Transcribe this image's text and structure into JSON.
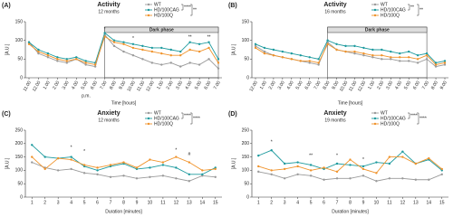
{
  "chart_data": [
    {
      "type": "line",
      "panel": "(A)",
      "title": "Activity",
      "subtitle": "12 months",
      "xlabel": "Time [hours]",
      "ylabel": "[A.U.]",
      "x_note": "p.m.",
      "categories": [
        "11.00",
        "12.00",
        "1.00",
        "2.00",
        "3.00",
        "4.00",
        "5.00",
        "6.00",
        "7.00",
        "8.00",
        "9.00",
        "10.00",
        "11.00",
        "12.00",
        "1.00",
        "2.00",
        "3.00",
        "4.00",
        "5.00",
        "6.00",
        "7.00"
      ],
      "ylim": [
        0,
        150
      ],
      "yticks": [
        0,
        50,
        100,
        150
      ],
      "series": [
        {
          "name": "WT",
          "color": "#9a9a9a",
          "values": [
            95,
            65,
            55,
            45,
            40,
            50,
            35,
            30,
            115,
            85,
            70,
            60,
            50,
            40,
            35,
            40,
            30,
            40,
            35,
            50,
            25
          ]
        },
        {
          "name": "HD/100CAG",
          "color": "#1d9a9e",
          "values": [
            95,
            75,
            65,
            55,
            50,
            55,
            45,
            40,
            120,
            100,
            95,
            90,
            85,
            80,
            80,
            75,
            70,
            95,
            90,
            95,
            50
          ]
        },
        {
          "name": "HD/100Q",
          "color": "#f0932b",
          "values": [
            90,
            70,
            60,
            50,
            45,
            50,
            40,
            35,
            110,
            95,
            90,
            80,
            75,
            70,
            65,
            60,
            60,
            75,
            70,
            80,
            40
          ]
        }
      ],
      "legend_notes": [
        "****",
        "**"
      ],
      "shaded": {
        "label": "Dark phase",
        "from": 8,
        "to": 20
      },
      "annotations": [
        {
          "index": 8,
          "y": 130,
          "label": "*"
        },
        {
          "index": 11,
          "y": 105,
          "label": "*"
        },
        {
          "index": 17,
          "y": 108,
          "label": "**"
        },
        {
          "index": 19,
          "y": 108,
          "label": "**"
        }
      ]
    },
    {
      "type": "line",
      "panel": "(B)",
      "title": "Activity",
      "subtitle": "16 months",
      "xlabel": "Time [hours]",
      "ylabel": "[A.U.]",
      "categories": [
        "12.00",
        "1.00",
        "2.00",
        "3.00",
        "4.00",
        "5.00",
        "6.00",
        "7.00",
        "8.00",
        "9.00",
        "10.00",
        "11.00",
        "12.00",
        "1.00",
        "2.00",
        "3.00",
        "4.00",
        "5.00",
        "6.00",
        "7.00",
        "8.00",
        "9.00"
      ],
      "ylim": [
        0,
        150
      ],
      "yticks": [
        0,
        50,
        100,
        150
      ],
      "series": [
        {
          "name": "WT",
          "color": "#9a9a9a",
          "values": [
            85,
            70,
            60,
            55,
            50,
            45,
            40,
            35,
            95,
            75,
            70,
            65,
            60,
            55,
            50,
            50,
            45,
            45,
            40,
            50,
            30,
            35
          ]
        },
        {
          "name": "HD/100CAG",
          "color": "#1d9a9e",
          "values": [
            90,
            80,
            75,
            70,
            65,
            60,
            55,
            50,
            100,
            90,
            85,
            85,
            80,
            75,
            75,
            70,
            65,
            70,
            60,
            65,
            40,
            45
          ]
        },
        {
          "name": "HD/100Q",
          "color": "#f0932b",
          "values": [
            80,
            65,
            60,
            55,
            50,
            45,
            45,
            40,
            90,
            75,
            70,
            70,
            65,
            60,
            60,
            55,
            55,
            55,
            50,
            60,
            35,
            40
          ]
        }
      ],
      "legend_notes": [
        "**",
        "**"
      ],
      "shaded": {
        "label": "Dark phase",
        "from": 8,
        "to": 19
      },
      "annotations": []
    },
    {
      "type": "line",
      "panel": "(C)",
      "title": "Anxiety",
      "subtitle": "12 months",
      "xlabel": "Duration [minutes]",
      "ylabel": "[A.U.]",
      "x": [
        1,
        2,
        3,
        4,
        5,
        6,
        7,
        8,
        9,
        10,
        11,
        12,
        13,
        14,
        15
      ],
      "xlim": [
        0.5,
        15.5
      ],
      "xticks": [
        1,
        2,
        3,
        4,
        5,
        6,
        7,
        8,
        9,
        10,
        11,
        12,
        13,
        14,
        15
      ],
      "ylim": [
        0,
        250
      ],
      "yticks": [
        0,
        50,
        100,
        150,
        200,
        250
      ],
      "series": [
        {
          "name": "WT",
          "color": "#9a9a9a",
          "values": [
            130,
            110,
            100,
            105,
            90,
            85,
            75,
            80,
            70,
            75,
            80,
            70,
            60,
            80,
            75
          ]
        },
        {
          "name": "HD/100CAG",
          "color": "#1d9a9e",
          "values": [
            195,
            150,
            145,
            150,
            115,
            100,
            115,
            125,
            105,
            110,
            120,
            110,
            85,
            85,
            110
          ]
        },
        {
          "name": "HD/100Q",
          "color": "#f0932b",
          "values": [
            150,
            105,
            145,
            140,
            120,
            110,
            120,
            130,
            110,
            140,
            130,
            150,
            130,
            100,
            105
          ]
        }
      ],
      "legend_notes": [
        "****",
        "****"
      ],
      "annotations": [
        {
          "index": 3,
          "y": 185,
          "label": "*"
        },
        {
          "index": 4,
          "y": 170,
          "label": "*"
        },
        {
          "index": 11,
          "y": 175,
          "label": "*"
        },
        {
          "index": 12,
          "y": 160,
          "label": "#"
        }
      ]
    },
    {
      "type": "line",
      "panel": "(D)",
      "title": "Anxiety",
      "subtitle": "19 months",
      "xlabel": "Duration [minutes]",
      "ylabel": "[A.U.]",
      "x": [
        1,
        2,
        3,
        4,
        5,
        6,
        7,
        8,
        9,
        10,
        11,
        12,
        13,
        14,
        15
      ],
      "xlim": [
        0.5,
        15.5
      ],
      "xticks": [
        1,
        2,
        3,
        4,
        5,
        6,
        7,
        8,
        9,
        10,
        11,
        12,
        13,
        14,
        15
      ],
      "ylim": [
        0,
        250
      ],
      "yticks": [
        0,
        50,
        100,
        150,
        200,
        250
      ],
      "series": [
        {
          "name": "WT",
          "color": "#9a9a9a",
          "values": [
            95,
            85,
            70,
            85,
            80,
            65,
            70,
            70,
            80,
            60,
            70,
            70,
            65,
            65,
            85
          ]
        },
        {
          "name": "HD/100CAG",
          "color": "#1d9a9e",
          "values": [
            155,
            175,
            125,
            130,
            120,
            105,
            125,
            120,
            115,
            130,
            125,
            170,
            125,
            140,
            100
          ]
        },
        {
          "name": "HD/100Q",
          "color": "#f0932b",
          "values": [
            115,
            100,
            105,
            115,
            100,
            110,
            95,
            140,
            105,
            90,
            150,
            150,
            125,
            145,
            105
          ]
        }
      ],
      "legend_notes": [
        "****",
        "****"
      ],
      "annotations": [
        {
          "index": 1,
          "y": 205,
          "label": "*"
        },
        {
          "index": 4,
          "y": 155,
          "label": "**"
        },
        {
          "index": 6,
          "y": 155,
          "label": "*"
        },
        {
          "index": 8,
          "y": 140,
          "label": "*"
        }
      ]
    }
  ]
}
